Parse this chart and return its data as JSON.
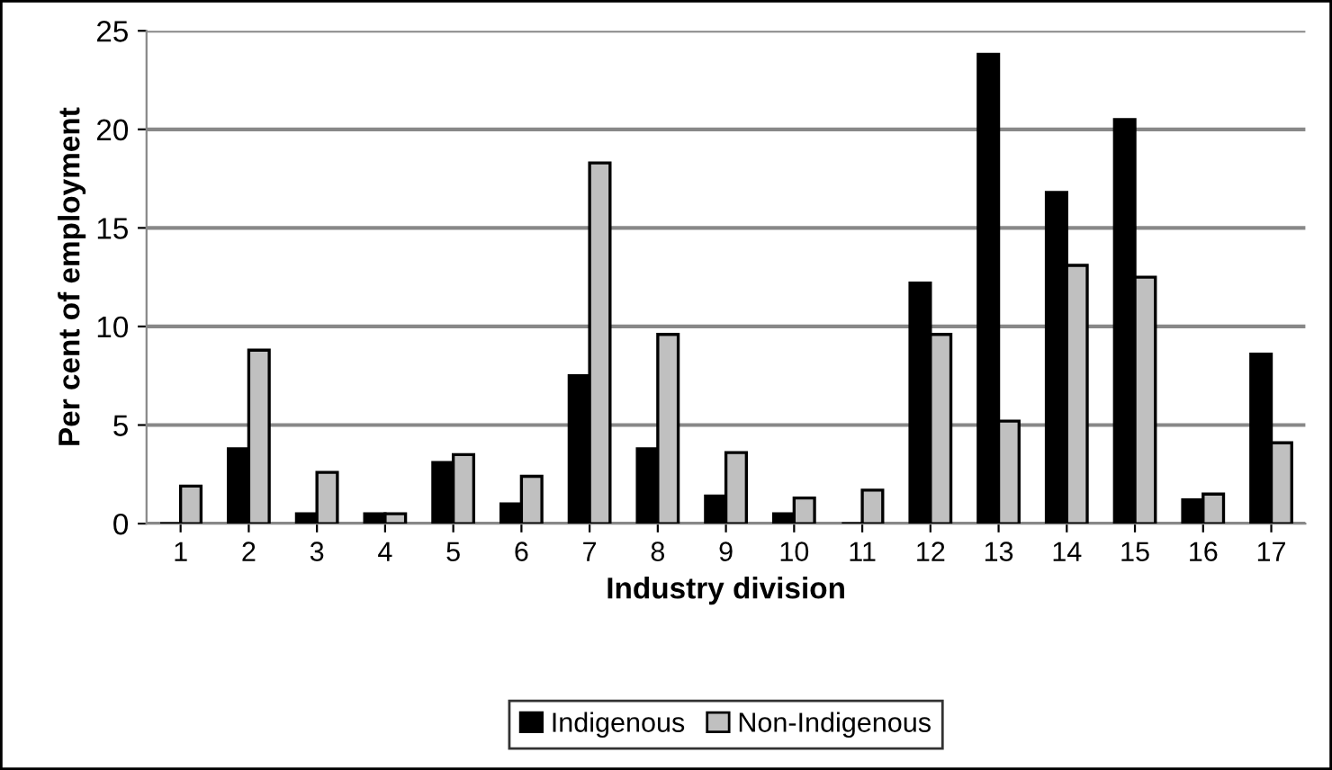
{
  "chart_data": {
    "type": "bar",
    "xlabel": "Industry division",
    "ylabel": "Per cent of employment",
    "categories": [
      "1",
      "2",
      "3",
      "4",
      "5",
      "6",
      "7",
      "8",
      "9",
      "10",
      "11",
      "12",
      "13",
      "14",
      "15",
      "16",
      "17"
    ],
    "series": [
      {
        "name": "Indigenous",
        "color": "#000000",
        "values": [
          0,
          3.8,
          0.5,
          0.5,
          3.1,
          1.0,
          7.5,
          3.8,
          1.4,
          0.5,
          0,
          12.2,
          23.8,
          16.8,
          20.5,
          1.2,
          8.6
        ]
      },
      {
        "name": "Non-Indigenous",
        "color": "#c0c0c0",
        "values": [
          1.9,
          8.8,
          2.6,
          0.5,
          3.5,
          2.4,
          18.3,
          9.6,
          3.6,
          1.3,
          1.7,
          9.6,
          5.2,
          13.1,
          12.5,
          1.5,
          4.1
        ]
      }
    ],
    "ylim": [
      0,
      25
    ],
    "yticks": [
      0,
      5,
      10,
      15,
      20,
      25
    ],
    "grid": "y",
    "legend": "bottom"
  }
}
